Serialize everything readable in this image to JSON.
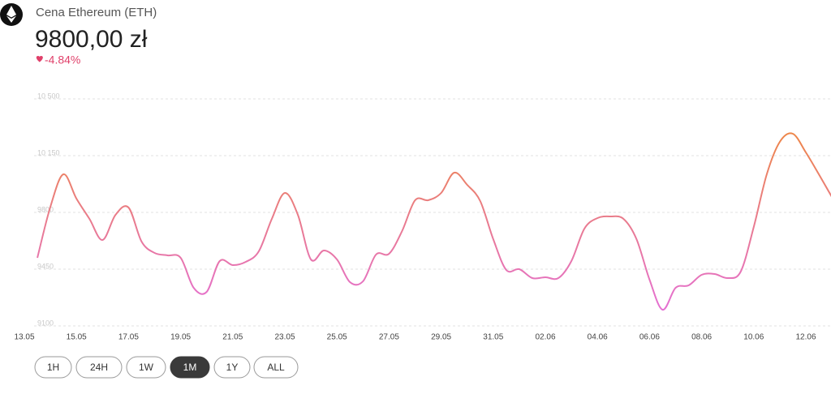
{
  "header": {
    "title": "Cena Ethereum (ETH)",
    "price": "9800,00 zł",
    "change": "-4.84%"
  },
  "chart_data": {
    "type": "line",
    "categories": [
      null,
      null,
      null,
      null,
      "15.05",
      null,
      null,
      null,
      "17.05",
      null,
      null,
      null,
      "19.05",
      null,
      null,
      null,
      "21.05",
      null,
      null,
      null,
      "23.05",
      null,
      null,
      null,
      "25.05",
      null,
      null,
      null,
      "27.05",
      null,
      null,
      null,
      "29.05",
      null,
      null,
      null,
      "31.05",
      null,
      null,
      null,
      "02.06",
      null,
      null,
      null,
      "04.06",
      null,
      null,
      null,
      "06.06",
      null,
      null,
      null,
      "08.06",
      null,
      null,
      null,
      "10.06",
      null,
      null,
      null,
      "12.06",
      null,
      null
    ],
    "first_label": "13.05",
    "values": [
      null,
      9520,
      9835,
      10035,
      9885,
      9760,
      9630,
      9785,
      9830,
      9620,
      9550,
      9535,
      9520,
      9335,
      9310,
      9500,
      9475,
      9495,
      9560,
      9760,
      9920,
      9785,
      9510,
      9565,
      9510,
      9370,
      9375,
      9540,
      9545,
      9685,
      9875,
      9875,
      9920,
      10045,
      9970,
      9870,
      9635,
      9445,
      9450,
      9395,
      9400,
      9395,
      9500,
      9700,
      9765,
      9775,
      9760,
      9635,
      9385,
      9200,
      9335,
      9350,
      9415,
      9420,
      9395,
      9435,
      9710,
      10035,
      10235,
      10285,
      10170,
      10035,
      9895
    ],
    "colors": [
      "#e46ee0",
      "#ef8a2e"
    ],
    "ylim": [
      9100,
      10500
    ],
    "yticks": [
      {
        "value": 10500,
        "label": "10 500"
      },
      {
        "value": 10150,
        "label": "10 150"
      },
      9800,
      9450,
      9100
    ],
    "grid": true
  },
  "buttons": [
    "1H",
    "24H",
    "1W",
    "1M",
    "1Y",
    "ALL"
  ],
  "active_button": 3
}
